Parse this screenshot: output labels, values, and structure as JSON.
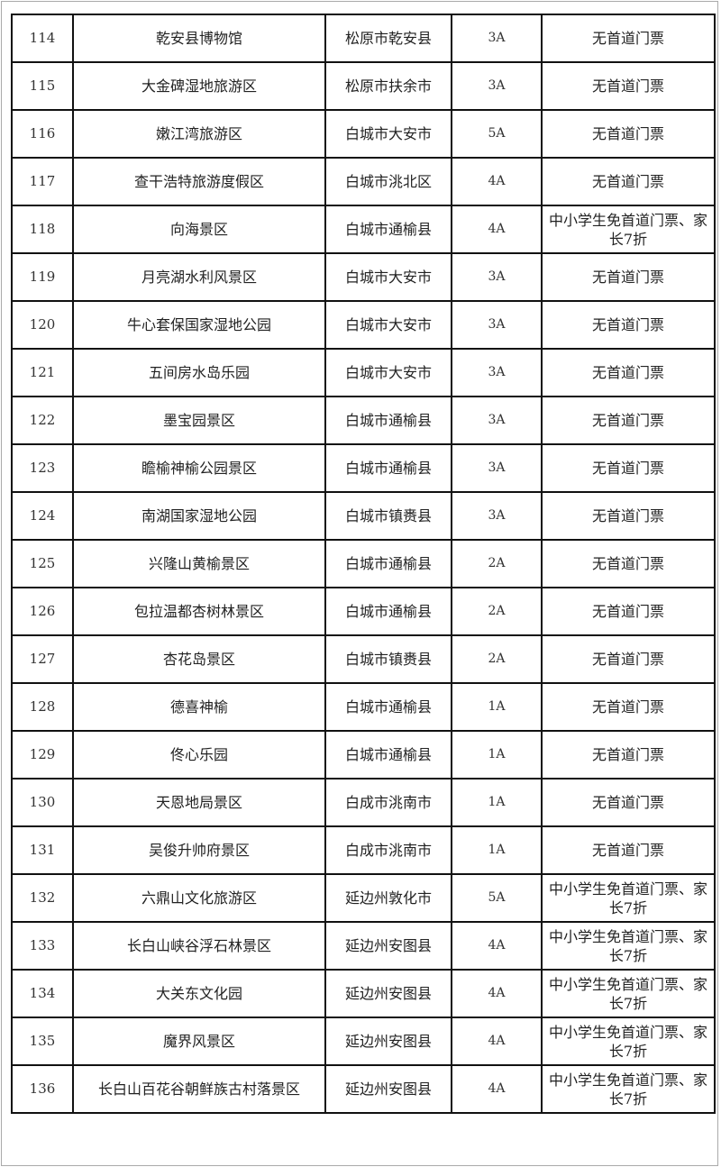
{
  "rows": [
    {
      "no": "114",
      "name": "乾安县博物馆",
      "location": "松原市乾安县",
      "level": "3A",
      "policy": "无首道门票"
    },
    {
      "no": "115",
      "name": "大金碑湿地旅游区",
      "location": "松原市扶余市",
      "level": "3A",
      "policy": "无首道门票"
    },
    {
      "no": "116",
      "name": "嫩江湾旅游区",
      "location": "白城市大安市",
      "level": "5A",
      "policy": "无首道门票"
    },
    {
      "no": "117",
      "name": "查干浩特旅游度假区",
      "location": "白城市洮北区",
      "level": "4A",
      "policy": "无首道门票"
    },
    {
      "no": "118",
      "name": "向海景区",
      "location": "白城市通榆县",
      "level": "4A",
      "policy": "中小学生免首道门票、家长7折"
    },
    {
      "no": "119",
      "name": "月亮湖水利风景区",
      "location": "白城市大安市",
      "level": "3A",
      "policy": "无首道门票"
    },
    {
      "no": "120",
      "name": "牛心套保国家湿地公园",
      "location": "白城市大安市",
      "level": "3A",
      "policy": "无首道门票"
    },
    {
      "no": "121",
      "name": "五间房水岛乐园",
      "location": "白城市大安市",
      "level": "3A",
      "policy": "无首道门票"
    },
    {
      "no": "122",
      "name": "墨宝园景区",
      "location": "白城市通榆县",
      "level": "3A",
      "policy": "无首道门票"
    },
    {
      "no": "123",
      "name": "瞻榆神榆公园景区",
      "location": "白城市通榆县",
      "level": "3A",
      "policy": "无首道门票"
    },
    {
      "no": "124",
      "name": "南湖国家湿地公园",
      "location": "白城市镇赉县",
      "level": "3A",
      "policy": "无首道门票"
    },
    {
      "no": "125",
      "name": "兴隆山黄榆景区",
      "location": "白城市通榆县",
      "level": "2A",
      "policy": "无首道门票"
    },
    {
      "no": "126",
      "name": "包拉温都杏树林景区",
      "location": "白城市通榆县",
      "level": "2A",
      "policy": "无首道门票"
    },
    {
      "no": "127",
      "name": "杏花岛景区",
      "location": "白城市镇赉县",
      "level": "2A",
      "policy": "无首道门票"
    },
    {
      "no": "128",
      "name": "德喜神榆",
      "location": "白城市通榆县",
      "level": "1A",
      "policy": "无首道门票"
    },
    {
      "no": "129",
      "name": "佟心乐园",
      "location": "白城市通榆县",
      "level": "1A",
      "policy": "无首道门票"
    },
    {
      "no": "130",
      "name": "天恩地局景区",
      "location": "白成市洮南市",
      "level": "1A",
      "policy": "无首道门票"
    },
    {
      "no": "131",
      "name": "吴俊升帅府景区",
      "location": "白成市洮南市",
      "level": "1A",
      "policy": "无首道门票"
    },
    {
      "no": "132",
      "name": "六鼎山文化旅游区",
      "location": "延边州敦化市",
      "level": "5A",
      "policy": "中小学生免首道门票、家长7折"
    },
    {
      "no": "133",
      "name": "长白山峡谷浮石林景区",
      "location": "延边州安图县",
      "level": "4A",
      "policy": "中小学生免首道门票、家长7折"
    },
    {
      "no": "134",
      "name": "大关东文化园",
      "location": "延边州安图县",
      "level": "4A",
      "policy": "中小学生免首道门票、家长7折"
    },
    {
      "no": "135",
      "name": "魔界风景区",
      "location": "延边州安图县",
      "level": "4A",
      "policy": "中小学生免首道门票、家长7折"
    },
    {
      "no": "136",
      "name": "长白山百花谷朝鲜族古村落景区",
      "location": "延边州安图县",
      "level": "4A",
      "policy": "中小学生免首道门票、家长7折"
    }
  ]
}
